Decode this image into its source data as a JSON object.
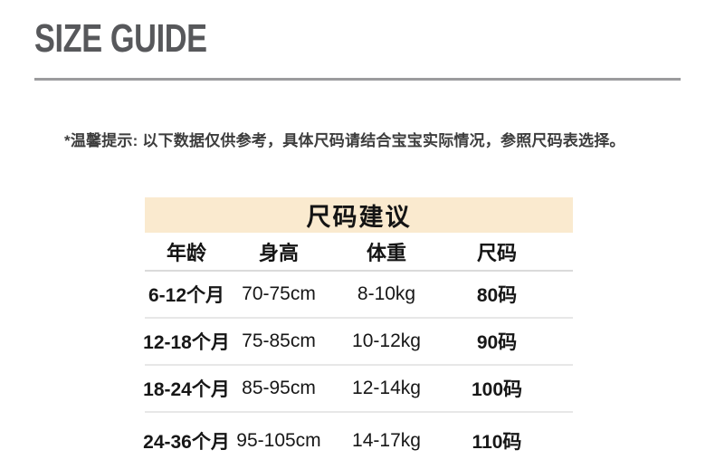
{
  "header": {
    "title": "SIZE GUIDE"
  },
  "notice": {
    "text": "*温馨提示: 以下数据仅供参考，具体尺码请结合宝宝实际情况，参照尺码表选择。"
  },
  "size_table": {
    "title": "尺码建议",
    "columns": [
      "年龄",
      "身高",
      "体重",
      "尺码"
    ],
    "rows": [
      [
        "6-12个月",
        "70-75cm",
        "8-10kg",
        "80码"
      ],
      [
        "12-18个月",
        "75-85cm",
        "10-12kg",
        "90码"
      ],
      [
        "18-24个月",
        "85-95cm",
        "12-14kg",
        "100码"
      ],
      [
        "24-36个月",
        "95-105cm",
        "14-17kg",
        "110码"
      ]
    ]
  },
  "colors": {
    "table_title_bg": "#FAEACF",
    "page_title_color": "#57585B",
    "divider_rule_color": "#9B9B9D",
    "row_divider_color": "#E7E7E7",
    "table_text_color": "#141414"
  }
}
